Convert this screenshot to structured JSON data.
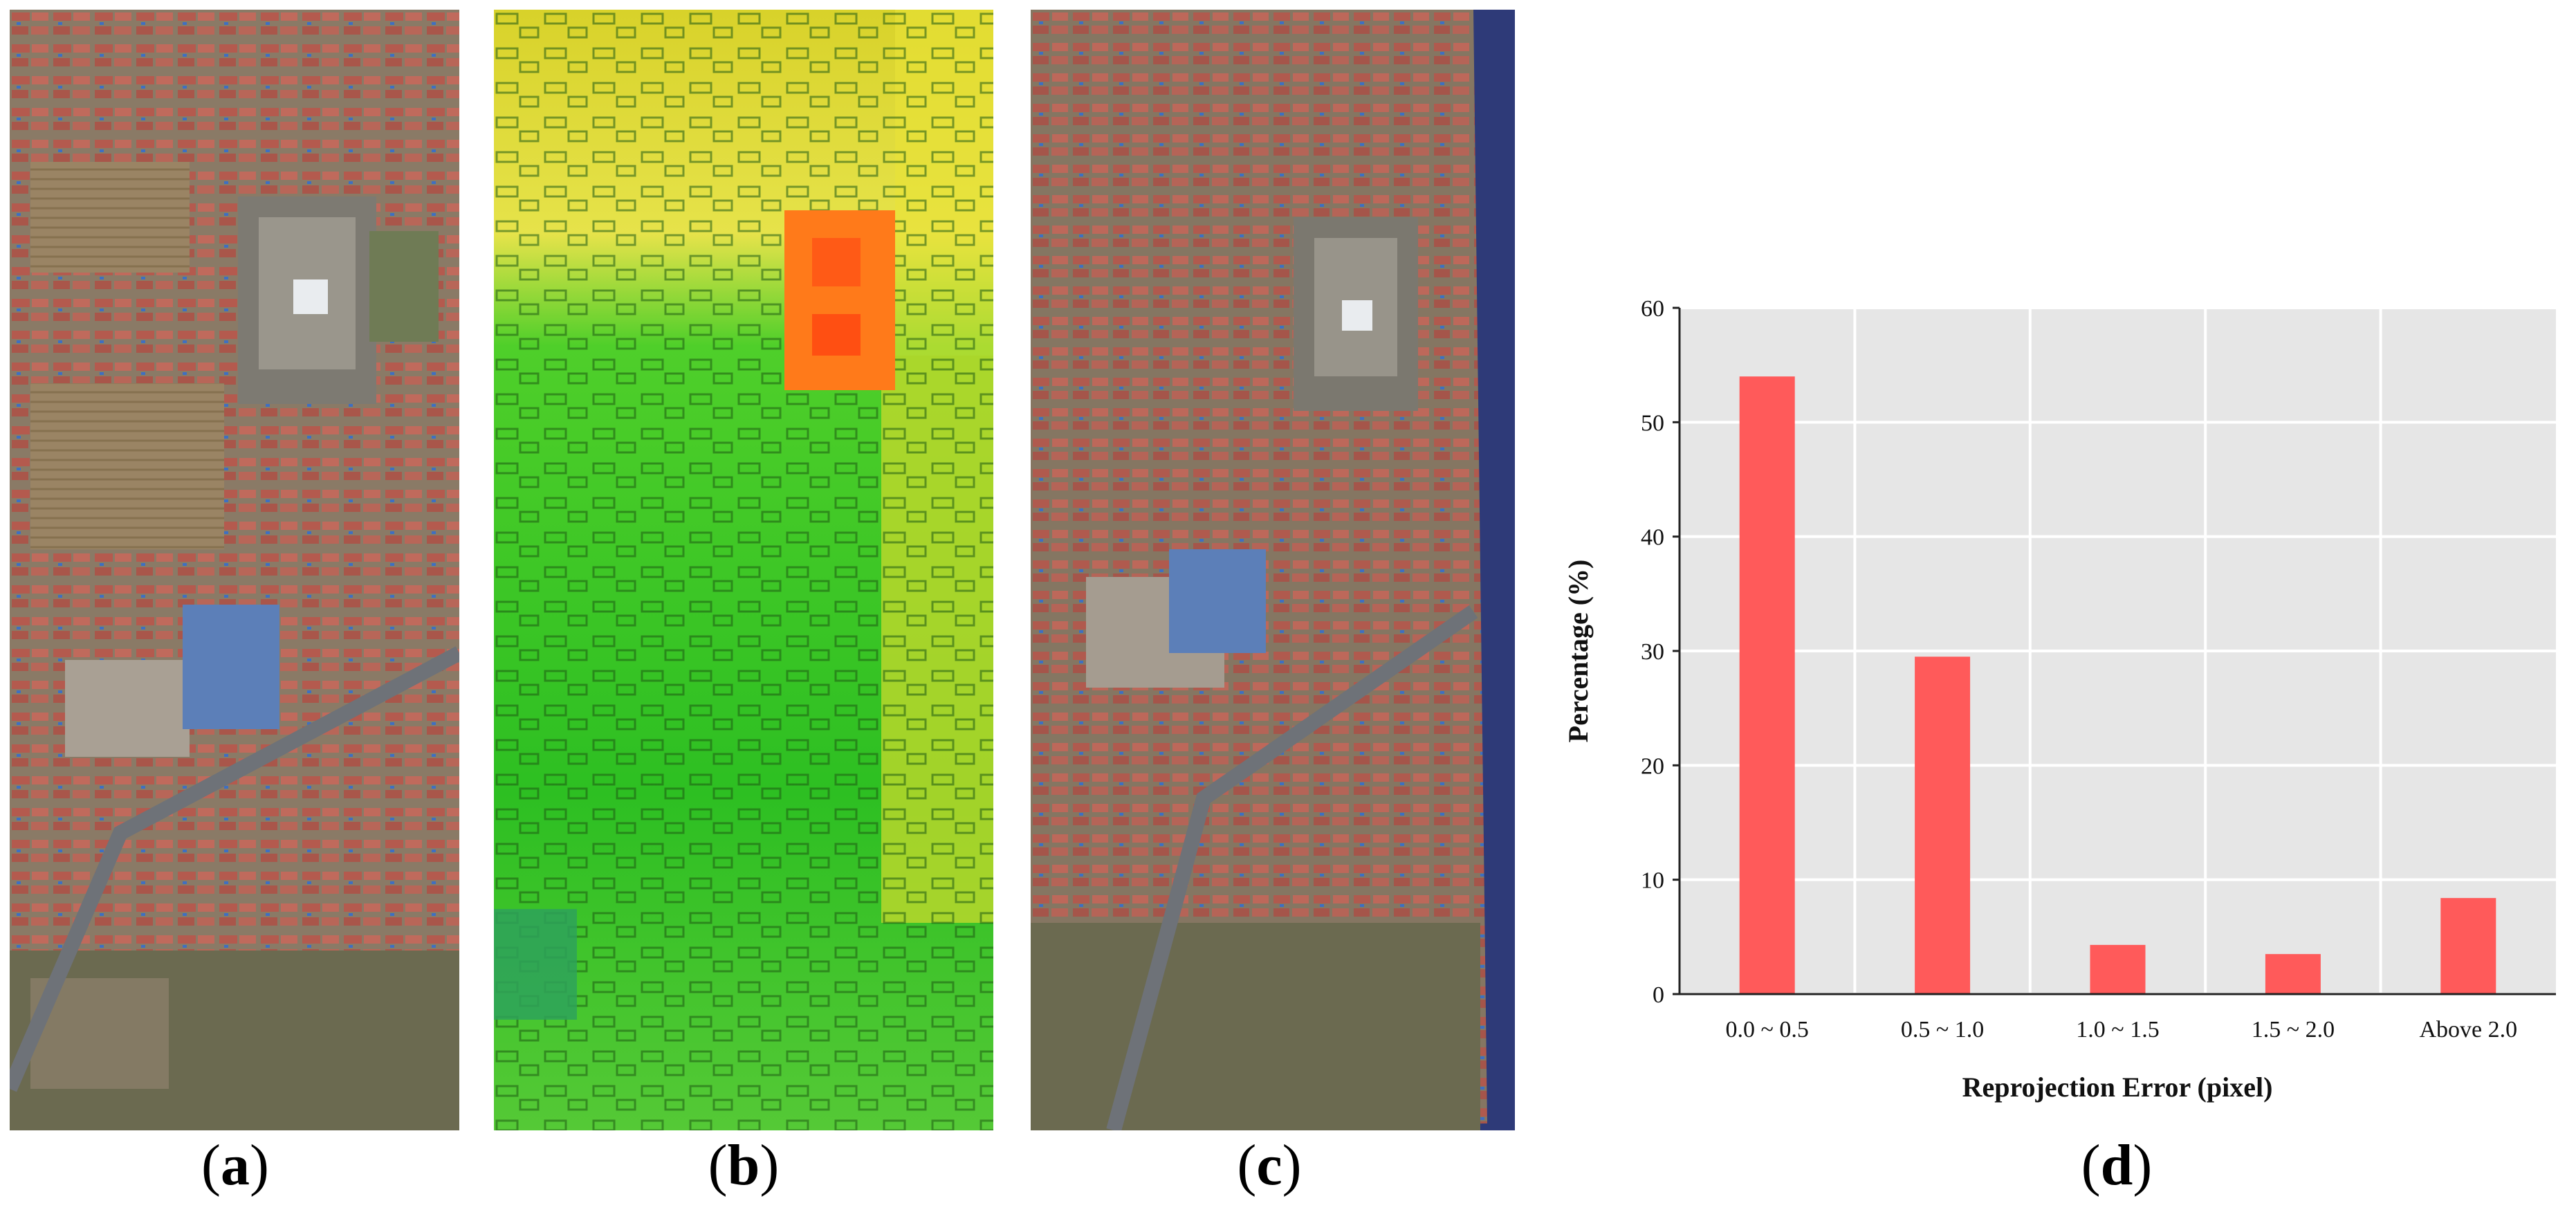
{
  "panels": [
    {
      "id": "a",
      "label": "a",
      "description_icon": "aerial-photo-icon"
    },
    {
      "id": "b",
      "label": "b",
      "description_icon": "elevation-map-icon"
    },
    {
      "id": "c",
      "label": "c",
      "description_icon": "orthophoto-icon"
    },
    {
      "id": "d",
      "label": "d",
      "description_icon": "bar-chart-icon"
    }
  ],
  "colors": {
    "bar": "#ff5a5a",
    "plot_bg": "#e6e6e6",
    "grid": "#ffffff",
    "elevation_low": "#22c21f",
    "elevation_mid": "#e8e62a",
    "elevation_high": "#ff6a1a",
    "nodata": "#2e3a78"
  },
  "chart_data": {
    "type": "bar",
    "categories": [
      "0.0 ~ 0.5",
      "0.5 ~ 1.0",
      "1.0 ~ 1.5",
      "1.5 ~ 2.0",
      "Above 2.0"
    ],
    "values": [
      54,
      29.5,
      4.3,
      3.5,
      8.4
    ],
    "title": "",
    "xlabel": "Reprojection Error (pixel)",
    "ylabel": "Percentage (%)",
    "ylim": [
      0,
      60
    ],
    "yticks": [
      "0",
      "10",
      "20",
      "30",
      "40",
      "50",
      "60"
    ],
    "grid": true,
    "legend": "none"
  }
}
